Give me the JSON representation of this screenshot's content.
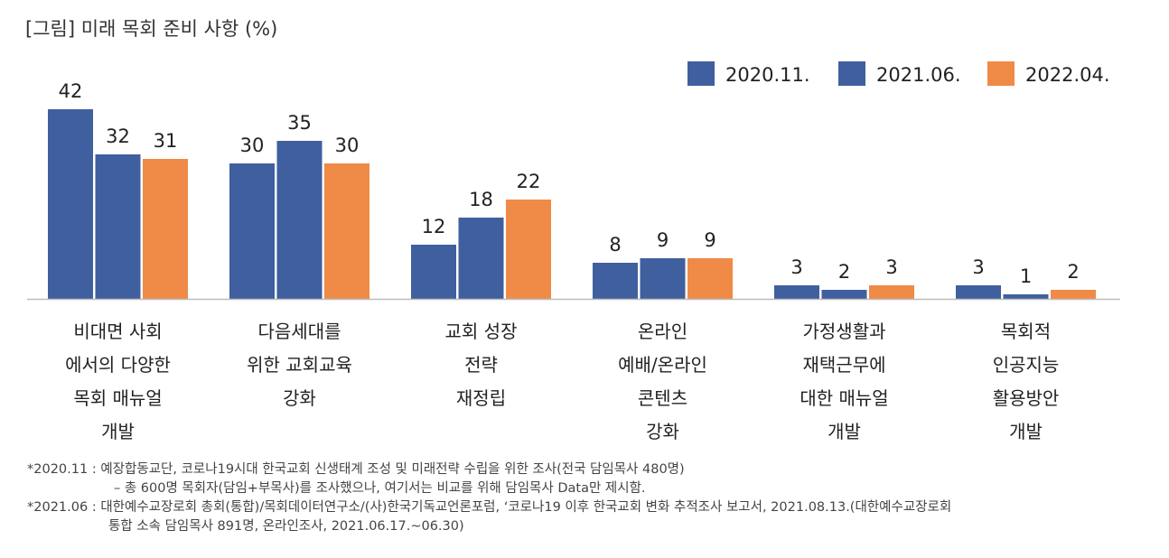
{
  "title": "[그림] 미래 목회 준비 사항 (%)",
  "colors": {
    "2020.11.": "#3f5f9e",
    "2021.06.": "#3f5f9e",
    "2022.04.": "#ef8a47"
  },
  "chart_data": {
    "type": "bar",
    "title": "[그림] 미래 목회 준비 사항 (%)",
    "legend_position": "top-right",
    "grid": false,
    "ylim": [
      0,
      45
    ],
    "categories": [
      [
        "비대면 사회",
        "에서의 다양한",
        "목회 매뉴얼",
        "개발"
      ],
      [
        "다음세대를",
        "위한 교회교육",
        "강화"
      ],
      [
        "교회 성장",
        "전략",
        "재정립"
      ],
      [
        "온라인",
        "예배/온라인",
        "콘텐츠",
        "강화"
      ],
      [
        "가정생활과",
        "재택근무에",
        "대한 매뉴얼",
        "개발"
      ],
      [
        "목회적",
        "인공지능",
        "활용방안",
        "개발"
      ]
    ],
    "series": [
      {
        "name": "2020.11.",
        "color": "#3f5f9e",
        "values": [
          42,
          30,
          12,
          8,
          3,
          3
        ]
      },
      {
        "name": "2021.06.",
        "color": "#3f5f9e",
        "values": [
          32,
          35,
          18,
          9,
          2,
          1
        ]
      },
      {
        "name": "2022.04.",
        "color": "#ef8a47",
        "values": [
          31,
          30,
          22,
          9,
          3,
          2
        ]
      }
    ]
  },
  "notes": [
    "*2020.11 : 예장합동교단, 코로나19시대 한국교회 신생태계 조성 및 미래전략 수립을 위한 조사(전국 담임목사 480명)",
    "– 총 600명 목회자(담임+부목사)를 조사했으나, 여기서는 비교를 위해 담임목사 Data만 제시함.",
    "*2021.06 : 대한예수교장로회 총회(통합)/목회데이터연구소/(사)한국기독교언론포럼, ‘코로나19 이후 한국교회 변화 추적조사 보고서, 2021.08.13.(대한예수교장로회",
    "통합 소속 담임목사 891명, 온라인조사, 2021.06.17.~06.30)"
  ]
}
